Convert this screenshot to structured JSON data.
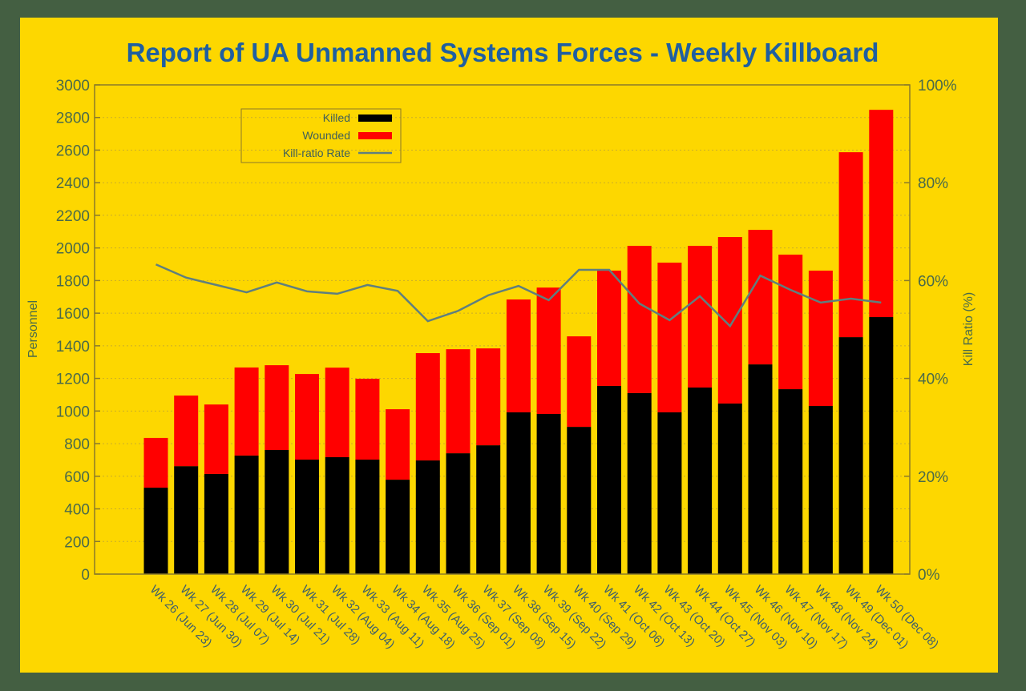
{
  "chart_data": {
    "type": "bar",
    "stacked": true,
    "title": "Report of UA Unmanned Systems Forces - Weekly Killboard",
    "xlabel": "",
    "ylabel": "Personnel",
    "y2label": "Kill Ratio (%)",
    "ylim": [
      0,
      3000
    ],
    "y2lim": [
      0,
      100
    ],
    "yticks": [
      "0",
      "200",
      "400",
      "600",
      "800",
      "1000",
      "1200",
      "1400",
      "1600",
      "1800",
      "2000",
      "2200",
      "2400",
      "2600",
      "2800",
      "3000"
    ],
    "y2ticks": [
      "0%",
      "20%",
      "40%",
      "60%",
      "80%",
      "100%"
    ],
    "grid": true,
    "legend_position": "top-left",
    "legend": [
      {
        "label": "Killed",
        "color": "#000000",
        "kind": "bar"
      },
      {
        "label": "Wounded",
        "color": "#ff0000",
        "kind": "bar"
      },
      {
        "label": "Kill-ratio Rate",
        "color": "#5f7f7f",
        "kind": "line"
      }
    ],
    "categories": [
      "Wk 26 (Jun 23)",
      "Wk 27 (Jun 30)",
      "Wk 28 (Jul 07)",
      "Wk 29 (Jul 14)",
      "Wk 30 (Jul 21)",
      "Wk 31 (Jul 28)",
      "Wk 32 (Aug 04)",
      "Wk 33 (Aug 11)",
      "Wk 34 (Aug 18)",
      "Wk 35 (Aug 25)",
      "Wk 36 (Sep 01)",
      "Wk 37 (Sep 08)",
      "Wk 38 (Sep 15)",
      "Wk 39 (Sep 22)",
      "Wk 40 (Sep 29)",
      "Wk 41 (Oct 06)",
      "Wk 42 (Oct 13)",
      "Wk 43 (Oct 20)",
      "Wk 44 (Oct 27)",
      "Wk 45 (Nov 03)",
      "Wk 46 (Nov 10)",
      "Wk 47 (Nov 17)",
      "Wk 48 (Nov 24)",
      "Wk 49 (Dec 01)",
      "Wk 50 (Dec 08)"
    ],
    "series": [
      {
        "name": "Killed",
        "axis": "left",
        "color": "#000000",
        "values": [
          530,
          662,
          614,
          727,
          761,
          702,
          717,
          702,
          579,
          697,
          741,
          790,
          992,
          982,
          903,
          1154,
          1110,
          992,
          1144,
          1046,
          1286,
          1134,
          1031,
          1453,
          1576
        ]
      },
      {
        "name": "Wounded",
        "axis": "left",
        "color": "#ff0000",
        "values": [
          305,
          433,
          426,
          540,
          520,
          525,
          549,
          496,
          432,
          658,
          638,
          594,
          692,
          775,
          555,
          707,
          903,
          918,
          869,
          1021,
          825,
          825,
          830,
          1134,
          1271
        ]
      },
      {
        "name": "Kill-ratio Rate",
        "axis": "right",
        "type": "line",
        "color": "#5f7f7f",
        "values": [
          63.3,
          60.6,
          59.1,
          57.6,
          59.6,
          57.8,
          57.3,
          59.1,
          57.9,
          51.7,
          53.8,
          57.0,
          58.9,
          56.0,
          62.2,
          62.2,
          55.3,
          51.9,
          56.8,
          50.7,
          61.0,
          58.1,
          55.5,
          56.3,
          55.5
        ]
      }
    ]
  }
}
